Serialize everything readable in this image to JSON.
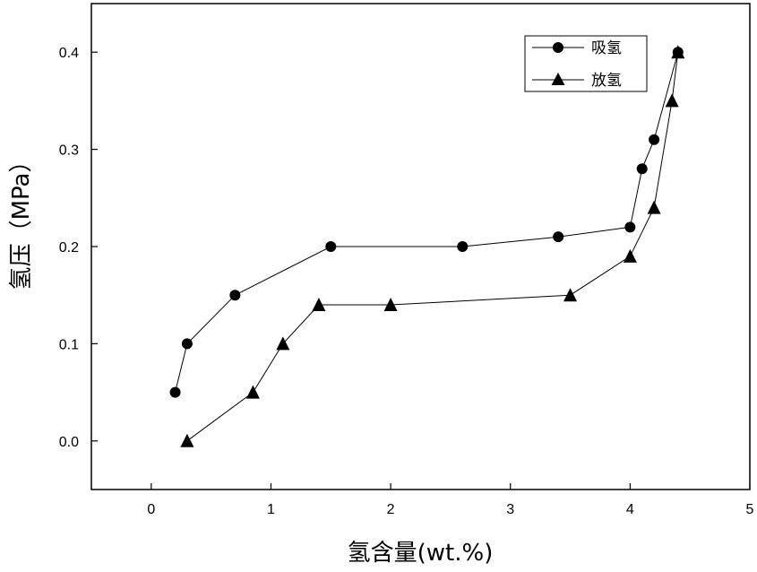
{
  "chart_data": {
    "type": "line",
    "xlabel": "氢含量(wt.%)",
    "ylabel": "氢压（MPa）",
    "xlim": [
      -0.5,
      5
    ],
    "ylim": [
      -0.05,
      0.45
    ],
    "xticks": [
      0,
      1,
      2,
      3,
      4,
      5
    ],
    "yticks": [
      0.0,
      0.1,
      0.2,
      0.3,
      0.4
    ],
    "xtick_labels": [
      "0",
      "1",
      "2",
      "3",
      "4",
      "5"
    ],
    "ytick_labels": [
      "0.0",
      "0.1",
      "0.2",
      "0.3",
      "0.4"
    ],
    "grid": false,
    "legend_position": "top-right",
    "series": [
      {
        "name": "吸氢",
        "marker": "circle",
        "color": "#000000",
        "x": [
          0.2,
          0.3,
          0.7,
          1.5,
          2.6,
          3.4,
          4.0,
          4.1,
          4.2,
          4.4
        ],
        "y": [
          0.05,
          0.1,
          0.15,
          0.2,
          0.2,
          0.21,
          0.22,
          0.28,
          0.31,
          0.4
        ]
      },
      {
        "name": "放氢",
        "marker": "triangle",
        "color": "#000000",
        "x": [
          0.3,
          0.85,
          1.1,
          1.4,
          2.0,
          3.5,
          4.0,
          4.2,
          4.35,
          4.4
        ],
        "y": [
          0.0,
          0.05,
          0.1,
          0.14,
          0.14,
          0.15,
          0.19,
          0.24,
          0.35,
          0.4
        ]
      }
    ]
  }
}
